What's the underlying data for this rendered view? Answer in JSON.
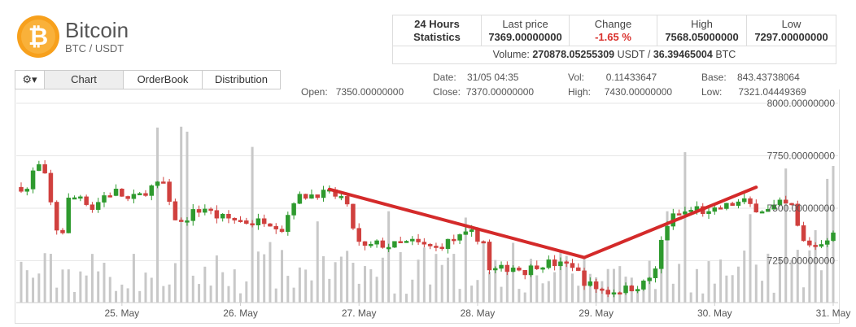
{
  "coin": {
    "name": "Bitcoin",
    "pair": "BTC / USDT",
    "logo_icon": "bitcoin-logo-icon",
    "logo_color": "#f7a01c"
  },
  "stats": {
    "heading_line1": "24 Hours",
    "heading_line2": "Statistics",
    "last_price_label": "Last price",
    "last_price": "7369.00000000",
    "change_label": "Change",
    "change": "-1.65 %",
    "high_label": "High",
    "high": "7568.05000000",
    "low_label": "Low",
    "low": "7297.00000000",
    "volume_label": "Volume:",
    "volume_usdt": "270878.05255309",
    "volume_usdt_unit": "USDT /",
    "volume_btc": "36.39465004",
    "volume_btc_unit": "BTC"
  },
  "tabs": {
    "gear_icon": "gear-icon",
    "gear_label": "⚙▾",
    "chart": "Chart",
    "orderbook": "OrderBook",
    "distribution": "Distribution"
  },
  "ohlc": {
    "open_label": "Open:",
    "open": "7350.00000000",
    "date_label": "Date:",
    "date": "31/05 04:35",
    "close_label": "Close:",
    "close": "7370.00000000",
    "vol_label": "Vol:",
    "vol": "0.11433647",
    "high_label": "High:",
    "high": "7430.00000000",
    "base_label": "Base:",
    "base": "843.43738064",
    "low_label": "Low:",
    "low": "7321.04449369"
  },
  "colors": {
    "up": "#2e9a2e",
    "down": "#d0403e",
    "volume": "#c8c8c8",
    "trend": "#d42a2a"
  },
  "chart_data": {
    "type": "candlestick",
    "y_ticks": [
      "8000.00000000",
      "7750.00000000",
      "7500.00000000",
      "7250.00000000"
    ],
    "y_tick_values": [
      8000,
      7750,
      7500,
      7250
    ],
    "ylim": [
      7050,
      8000
    ],
    "x_ticks": [
      "25. May",
      "26. May",
      "27. May",
      "28. May",
      "29. May",
      "30. May",
      "31. May"
    ],
    "xlim": [
      0,
      6.85
    ],
    "x_tick_values": [
      0.85,
      1.85,
      2.85,
      3.85,
      4.85,
      5.85,
      6.85
    ],
    "trendline": [
      [
        2.6,
        7590
      ],
      [
        4.75,
        7265
      ],
      [
        6.2,
        7600
      ]
    ],
    "close_path": [
      [
        0.0,
        7600
      ],
      [
        0.05,
        7590
      ],
      [
        0.13,
        7720
      ],
      [
        0.2,
        7650
      ],
      [
        0.27,
        7470
      ],
      [
        0.33,
        7330
      ],
      [
        0.4,
        7540
      ],
      [
        0.5,
        7560
      ],
      [
        0.6,
        7500
      ],
      [
        0.7,
        7560
      ],
      [
        0.8,
        7580
      ],
      [
        0.9,
        7540
      ],
      [
        1.0,
        7560
      ],
      [
        1.1,
        7600
      ],
      [
        1.2,
        7620
      ],
      [
        1.27,
        7470
      ],
      [
        1.35,
        7430
      ],
      [
        1.45,
        7480
      ],
      [
        1.55,
        7500
      ],
      [
        1.65,
        7460
      ],
      [
        1.75,
        7450
      ],
      [
        1.85,
        7440
      ],
      [
        1.95,
        7430
      ],
      [
        2.05,
        7445
      ],
      [
        2.15,
        7420
      ],
      [
        2.2,
        7400
      ],
      [
        2.3,
        7540
      ],
      [
        2.4,
        7560
      ],
      [
        2.5,
        7570
      ],
      [
        2.6,
        7570
      ],
      [
        2.7,
        7550
      ],
      [
        2.77,
        7480
      ],
      [
        2.83,
        7340
      ],
      [
        2.9,
        7310
      ],
      [
        3.0,
        7330
      ],
      [
        3.1,
        7320
      ],
      [
        3.2,
        7330
      ],
      [
        3.3,
        7340
      ],
      [
        3.4,
        7320
      ],
      [
        3.5,
        7310
      ],
      [
        3.6,
        7340
      ],
      [
        3.7,
        7360
      ],
      [
        3.8,
        7380
      ],
      [
        3.9,
        7340
      ],
      [
        3.95,
        7200
      ],
      [
        4.05,
        7210
      ],
      [
        4.15,
        7220
      ],
      [
        4.25,
        7200
      ],
      [
        4.35,
        7230
      ],
      [
        4.45,
        7240
      ],
      [
        4.55,
        7230
      ],
      [
        4.65,
        7230
      ],
      [
        4.75,
        7150
      ],
      [
        4.85,
        7120
      ],
      [
        4.95,
        7100
      ],
      [
        5.05,
        7110
      ],
      [
        5.15,
        7120
      ],
      [
        5.25,
        7140
      ],
      [
        5.35,
        7200
      ],
      [
        5.42,
        7400
      ],
      [
        5.5,
        7460
      ],
      [
        5.6,
        7480
      ],
      [
        5.7,
        7500
      ],
      [
        5.8,
        7470
      ],
      [
        5.9,
        7500
      ],
      [
        6.0,
        7520
      ],
      [
        6.1,
        7530
      ],
      [
        6.2,
        7500
      ],
      [
        6.3,
        7490
      ],
      [
        6.4,
        7520
      ],
      [
        6.5,
        7510
      ],
      [
        6.55,
        7410
      ],
      [
        6.6,
        7340
      ],
      [
        6.7,
        7320
      ],
      [
        6.8,
        7360
      ],
      [
        6.85,
        7370
      ]
    ]
  }
}
